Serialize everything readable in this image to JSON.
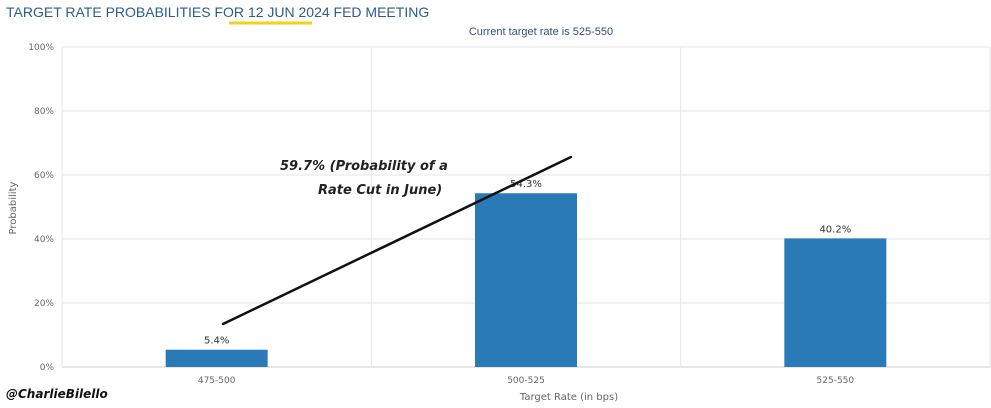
{
  "title": {
    "prefix": "TARGET RATE PROBABILITIES FOR ",
    "highlight": "12 JUN 2024",
    "suffix": " FED MEETING"
  },
  "highlight_color": "#f2d21b",
  "bar_color": "#2a7ab8",
  "chart_data": {
    "type": "bar",
    "subtitle": "Current target rate is 525-550",
    "categories": [
      "475-500",
      "500-525",
      "525-550"
    ],
    "values": [
      5.4,
      54.3,
      40.2
    ],
    "value_labels": [
      "5.4%",
      "54.3%",
      "40.2%"
    ],
    "xlabel": "Target Rate (in bps)",
    "ylabel": "Probability",
    "ylim": [
      0,
      100
    ],
    "yticks": [
      0,
      20,
      40,
      60,
      80,
      100
    ],
    "ytick_labels": [
      "0%",
      "20%",
      "40%",
      "60%",
      "80%",
      "100%"
    ],
    "grid": true,
    "annotation": {
      "line1": "59.7% (Probability of a",
      "line2": "Rate Cut in June)"
    }
  },
  "watermark": "@CharlieBilello"
}
